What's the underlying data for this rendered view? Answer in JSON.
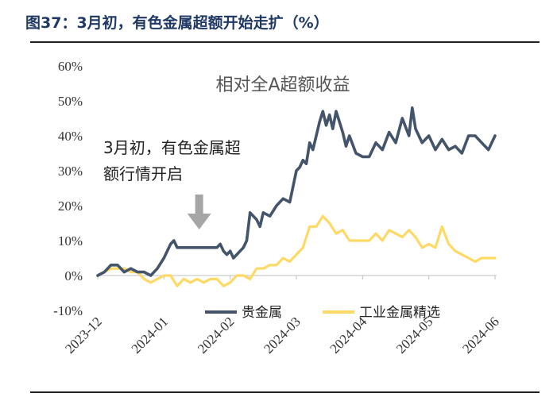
{
  "figure_title": "图37：3月初，有色金属超额开始走扩（%）",
  "chart_data": {
    "type": "line",
    "title": "相对全A超额收益",
    "xlabel": "",
    "ylabel": "",
    "ylim": [
      -10,
      60
    ],
    "y_ticks": [
      "60%",
      "50%",
      "40%",
      "30%",
      "20%",
      "10%",
      "0%",
      "-10%"
    ],
    "y_tick_values": [
      60,
      50,
      40,
      30,
      20,
      10,
      0,
      -10
    ],
    "x_ticks": [
      "2023-12",
      "2024-01",
      "2024-02",
      "2024-03",
      "2024-04",
      "2024-05",
      "2024-06"
    ],
    "x_tick_values": [
      0,
      1,
      2,
      3,
      4,
      5,
      6
    ],
    "grid": false,
    "legend_position": "bottom",
    "annotation": {
      "line1": "3月初，有色金属超",
      "line2": "额行情开启",
      "arrow_points_to": [
        2.0,
        10
      ]
    },
    "colors": {
      "precious": "#44546a",
      "industrial": "#ffd966",
      "arrow": "#a6a6a6"
    },
    "series": [
      {
        "name": "贵金属",
        "color": "#44546a",
        "x": [
          0,
          0.1,
          0.2,
          0.3,
          0.4,
          0.5,
          0.6,
          0.7,
          0.8,
          0.9,
          1.0,
          1.1,
          1.15,
          1.2,
          1.3,
          1.4,
          1.5,
          1.6,
          1.7,
          1.8,
          1.85,
          1.9,
          1.95,
          2.0,
          2.05,
          2.1,
          2.2,
          2.25,
          2.3,
          2.4,
          2.45,
          2.5,
          2.6,
          2.7,
          2.8,
          2.9,
          3.0,
          3.05,
          3.1,
          3.15,
          3.2,
          3.25,
          3.3,
          3.35,
          3.4,
          3.45,
          3.5,
          3.55,
          3.6,
          3.65,
          3.7,
          3.75,
          3.8,
          3.9,
          4.0,
          4.1,
          4.2,
          4.3,
          4.4,
          4.5,
          4.6,
          4.7,
          4.75,
          4.8,
          4.9,
          5.0,
          5.1,
          5.2,
          5.3,
          5.4,
          5.5,
          5.6,
          5.7,
          5.8,
          5.9,
          6.0
        ],
        "y": [
          0,
          1,
          3,
          3,
          1,
          2,
          1,
          1,
          0,
          2,
          5,
          9,
          10,
          8,
          8,
          8,
          8,
          8,
          8,
          8,
          9,
          7,
          6,
          7,
          5,
          6,
          8,
          10,
          18,
          16,
          14,
          18,
          17,
          20,
          22,
          21,
          30,
          31,
          33,
          32,
          38,
          36,
          40,
          44,
          47,
          43,
          46,
          42,
          47,
          44,
          41,
          37,
          40,
          35,
          34,
          34,
          38,
          36,
          41,
          38,
          45,
          40,
          48,
          42,
          38,
          40,
          36,
          39,
          36,
          37,
          35,
          40,
          40,
          38,
          36,
          40
        ]
      },
      {
        "name": "工业金属精选",
        "color": "#ffd966",
        "x": [
          0,
          0.1,
          0.2,
          0.3,
          0.4,
          0.5,
          0.6,
          0.7,
          0.8,
          0.9,
          1.0,
          1.1,
          1.2,
          1.3,
          1.4,
          1.5,
          1.6,
          1.7,
          1.8,
          1.9,
          2.0,
          2.1,
          2.2,
          2.3,
          2.4,
          2.5,
          2.6,
          2.7,
          2.8,
          2.9,
          3.0,
          3.1,
          3.2,
          3.3,
          3.4,
          3.5,
          3.6,
          3.7,
          3.8,
          3.9,
          4.0,
          4.1,
          4.2,
          4.3,
          4.4,
          4.5,
          4.6,
          4.7,
          4.8,
          4.9,
          5.0,
          5.1,
          5.2,
          5.3,
          5.4,
          5.5,
          5.6,
          5.7,
          5.8,
          5.9,
          6.0
        ],
        "y": [
          0,
          1,
          2,
          2,
          2,
          1,
          1,
          -1,
          -2,
          -1,
          0,
          0,
          -3,
          -1,
          -2,
          -1,
          -2,
          -1,
          -1,
          -3,
          -2,
          0,
          0,
          -1,
          2,
          2,
          3,
          3,
          5,
          4,
          6,
          8,
          14,
          14,
          17,
          15,
          12,
          13,
          10,
          10,
          10,
          10,
          12,
          10,
          13,
          12,
          11,
          13,
          11,
          8,
          9,
          8,
          14,
          9,
          7,
          6,
          5,
          4,
          5,
          5,
          5
        ]
      }
    ]
  }
}
